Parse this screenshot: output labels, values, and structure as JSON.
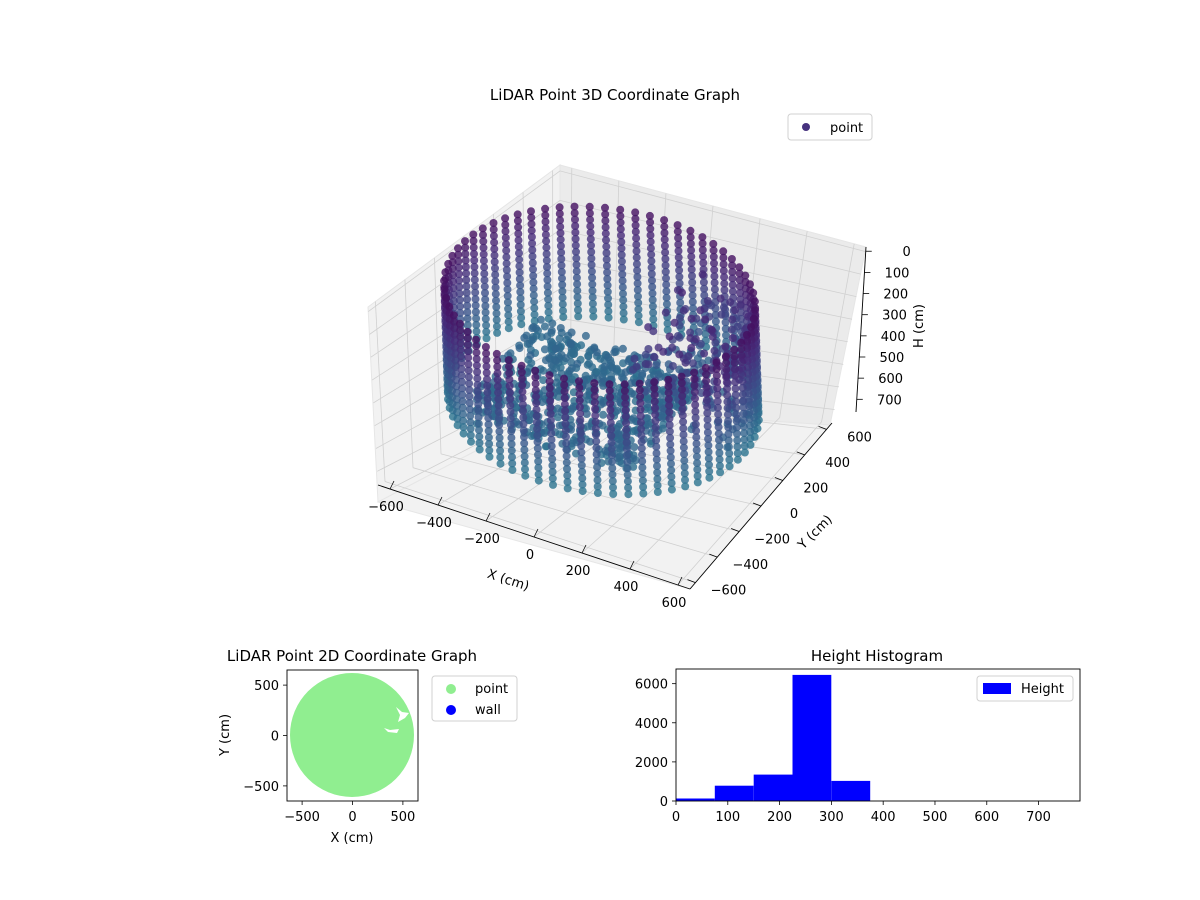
{
  "chart_data": [
    {
      "type": "scatter",
      "projection": "3d",
      "title": "LiDAR Point 3D Coordinate Graph",
      "xlabel": "X (cm)",
      "ylabel": "Y (cm)",
      "zlabel": "H (cm)",
      "x_ticks": [
        "−600",
        "−400",
        "−200",
        "0",
        "200",
        "400",
        "600"
      ],
      "y_ticks": [
        "−600",
        "−400",
        "−200",
        "0",
        "200",
        "400",
        "600"
      ],
      "z_ticks": [
        "0",
        "100",
        "200",
        "300",
        "400",
        "500",
        "600",
        "700"
      ],
      "xlim": [
        -650,
        650
      ],
      "ylim": [
        -650,
        650
      ],
      "zlim": [
        -20,
        760
      ],
      "z_inverted": true,
      "grid": true,
      "colormap": "viridis",
      "legend": {
        "position": "top-right",
        "entries": [
          {
            "label": "point",
            "color": "#46327e"
          }
        ]
      },
      "series": [
        {
          "name": "point",
          "description_points": {
            "wall_ring_radius": 590,
            "wall_height_range": [
              60,
              560
            ],
            "cluster": {
              "x_range": [
                150,
                600
              ],
              "y_range": [
                -100,
                500
              ],
              "h_range": [
                150,
                500
              ]
            },
            "floor": {
              "x_range": [
                -400,
                300
              ],
              "y_range": [
                -400,
                300
              ],
              "h_range": [
                450,
                520
              ]
            }
          }
        }
      ]
    },
    {
      "type": "scatter",
      "title": "LiDAR Point 2D Coordinate Graph",
      "xlabel": "X (cm)",
      "ylabel": "Y (cm)",
      "x_ticks": [
        "−500",
        "0",
        "500"
      ],
      "y_ticks": [
        "−500",
        "0",
        "500"
      ],
      "xlim": [
        -650,
        650
      ],
      "ylim": [
        -650,
        650
      ],
      "legend": {
        "position": "outside-right",
        "entries": [
          {
            "label": "point",
            "color": "#90ee90"
          },
          {
            "label": "wall",
            "color": "#0000ff"
          }
        ]
      },
      "series": [
        {
          "name": "point",
          "shape": "filled disc",
          "center": [
            0,
            0
          ],
          "radius": 620,
          "color": "#90ee90"
        }
      ]
    },
    {
      "type": "bar",
      "subtype": "histogram",
      "title": "Height Histogram",
      "x_ticks": [
        "0",
        "100",
        "200",
        "300",
        "400",
        "500",
        "600",
        "700"
      ],
      "y_ticks": [
        "0",
        "2000",
        "4000",
        "6000"
      ],
      "xlim": [
        0,
        780
      ],
      "ylim": [
        0,
        6750
      ],
      "bin_edges": [
        0,
        75,
        150,
        225,
        300,
        375,
        450,
        525,
        600,
        675,
        750
      ],
      "values": [
        130,
        780,
        1350,
        6450,
        1030,
        0,
        0,
        0,
        0,
        0
      ],
      "color": "#0000ff",
      "legend": {
        "position": "top-right",
        "entries": [
          {
            "label": "Height",
            "color": "#0000ff"
          }
        ]
      }
    }
  ]
}
